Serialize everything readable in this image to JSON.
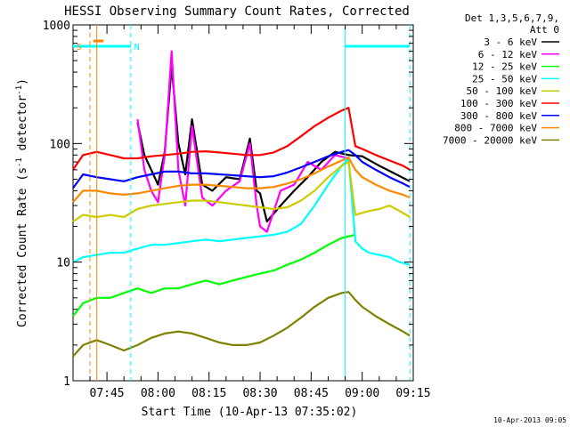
{
  "chart_data": {
    "type": "line",
    "title": "HESSI Observing Summary Count Rates, Corrected",
    "xlabel": "Start Time (10-Apr-13 07:35:02)",
    "ylabel_main": "Corrected Count Rate (s",
    "ylabel_sup1": "-1",
    "ylabel_mid": " detector",
    "ylabel_sup2": "-1",
    "ylabel_end": ")",
    "footer": "10-Apr-2013 09:05",
    "yscale": "log",
    "ylim": [
      1,
      1000
    ],
    "xlim": [
      "07:35:02",
      "09:15:00"
    ],
    "x_tick_labels": [
      "07:45",
      "08:00",
      "08:15",
      "08:30",
      "08:45",
      "09:00",
      "09:15"
    ],
    "y_tick_labels": [
      "1",
      "10",
      "100",
      "1000"
    ],
    "legend_header_1": "Det 1,3,5,6,7,9,",
    "legend_header_2": "Att 0",
    "legend_position": "right",
    "flags": {
      "saa_label": "S",
      "night_label": "N"
    },
    "series": [
      {
        "name": "3 - 6 keV",
        "color": "#000000",
        "x": [
          "07:35",
          "07:40",
          "07:41",
          "07:42",
          "07:44",
          "07:46",
          "07:50",
          "07:52",
          "07:54",
          "07:56",
          "07:58",
          "08:00",
          "08:02",
          "08:04",
          "08:06",
          "08:08",
          "08:10",
          "08:13",
          "08:16",
          "08:20",
          "08:24",
          "08:27",
          "08:29",
          "08:30",
          "08:32",
          "08:36",
          "08:40",
          "08:44",
          "08:48",
          "08:52",
          "08:56",
          "09:00",
          "09:05",
          "09:10",
          "09:14"
        ],
        "values": [
          null,
          null,
          null,
          null,
          null,
          null,
          null,
          null,
          150,
          80,
          60,
          45,
          85,
          450,
          100,
          55,
          160,
          45,
          40,
          52,
          50,
          110,
          40,
          38,
          22,
          30,
          40,
          52,
          70,
          85,
          80,
          78,
          65,
          55,
          48
        ]
      },
      {
        "name": "6 - 12 keV",
        "color": "#ff00ff",
        "x": [
          "07:54",
          "07:56",
          "07:58",
          "08:00",
          "08:02",
          "08:04",
          "08:06",
          "08:08",
          "08:10",
          "08:13",
          "08:16",
          "08:20",
          "08:24",
          "08:27",
          "08:29",
          "08:30",
          "08:32",
          "08:36",
          "08:40",
          "08:44",
          "08:48",
          "08:52",
          "08:56"
        ],
        "values": [
          160,
          60,
          40,
          32,
          80,
          600,
          60,
          30,
          140,
          35,
          30,
          40,
          48,
          100,
          30,
          20,
          18,
          40,
          45,
          70,
          60,
          80,
          75
        ]
      },
      {
        "name": "12 - 25 keV",
        "color": "#00ff00",
        "x": [
          "07:35",
          "07:38",
          "07:42",
          "07:46",
          "07:50",
          "07:54",
          "07:58",
          "08:02",
          "08:06",
          "08:10",
          "08:14",
          "08:18",
          "08:22",
          "08:26",
          "08:30",
          "08:34",
          "08:38",
          "08:42",
          "08:46",
          "08:50",
          "08:54",
          "08:58",
          "09:00",
          "09:04",
          "09:08",
          "09:12",
          "09:14"
        ],
        "values": [
          3.5,
          4.5,
          5,
          5,
          5.5,
          6,
          5.5,
          6,
          6,
          6.5,
          7,
          6.5,
          7,
          7.5,
          8,
          8.5,
          9.5,
          10.5,
          12,
          14,
          16,
          17,
          null,
          null,
          null,
          null,
          null
        ]
      },
      {
        "name": "25 - 50 keV",
        "color": "#00ffff",
        "x": [
          "07:35",
          "07:38",
          "07:42",
          "07:46",
          "07:50",
          "07:54",
          "07:58",
          "08:02",
          "08:06",
          "08:10",
          "08:14",
          "08:18",
          "08:22",
          "08:26",
          "08:30",
          "08:34",
          "08:38",
          "08:42",
          "08:46",
          "08:50",
          "08:54",
          "08:56",
          "08:58",
          "09:00",
          "09:02",
          "09:05",
          "09:08",
          "09:11",
          "09:14"
        ],
        "values": [
          10,
          11,
          11.5,
          12,
          12,
          13,
          14,
          14,
          14.5,
          15,
          15.5,
          15,
          15.5,
          16,
          16.5,
          17,
          18,
          21,
          30,
          45,
          65,
          75,
          15,
          13,
          12,
          11.5,
          11,
          10,
          9.5
        ]
      },
      {
        "name": "50 - 100 keV",
        "color": "#cccc00",
        "x": [
          "07:35",
          "07:38",
          "07:42",
          "07:46",
          "07:50",
          "07:54",
          "07:58",
          "08:02",
          "08:06",
          "08:10",
          "08:14",
          "08:18",
          "08:22",
          "08:26",
          "08:30",
          "08:34",
          "08:38",
          "08:42",
          "08:46",
          "08:50",
          "08:54",
          "08:56",
          "08:58",
          "09:00",
          "09:02",
          "09:05",
          "09:08",
          "09:11",
          "09:14"
        ],
        "values": [
          22,
          25,
          24,
          25,
          24,
          28,
          30,
          31,
          32,
          33,
          33,
          32,
          31,
          30,
          29,
          28,
          29,
          33,
          40,
          52,
          65,
          70,
          25,
          26,
          27,
          28,
          30,
          27,
          24
        ]
      },
      {
        "name": "100 - 300 keV",
        "color": "#ff0000",
        "x": [
          "07:35",
          "07:38",
          "07:42",
          "07:46",
          "07:50",
          "07:54",
          "07:58",
          "08:02",
          "08:06",
          "08:10",
          "08:14",
          "08:18",
          "08:22",
          "08:26",
          "08:30",
          "08:34",
          "08:38",
          "08:42",
          "08:46",
          "08:50",
          "08:54",
          "08:56",
          "08:58",
          "09:00",
          "09:04",
          "09:08",
          "09:12",
          "09:14"
        ],
        "values": [
          60,
          80,
          85,
          80,
          75,
          75,
          78,
          80,
          82,
          85,
          86,
          84,
          82,
          80,
          80,
          84,
          95,
          115,
          140,
          165,
          190,
          200,
          95,
          90,
          80,
          72,
          65,
          60
        ]
      },
      {
        "name": "300 - 800 keV",
        "color": "#0000ff",
        "x": [
          "07:35",
          "07:38",
          "07:42",
          "07:46",
          "07:50",
          "07:54",
          "07:58",
          "08:02",
          "08:06",
          "08:10",
          "08:14",
          "08:18",
          "08:22",
          "08:26",
          "08:30",
          "08:34",
          "08:38",
          "08:42",
          "08:46",
          "08:50",
          "08:54",
          "08:56",
          "08:58",
          "09:00",
          "09:04",
          "09:08",
          "09:12",
          "09:14"
        ],
        "values": [
          42,
          55,
          52,
          50,
          48,
          52,
          55,
          58,
          58,
          56,
          56,
          55,
          54,
          53,
          52,
          53,
          57,
          63,
          70,
          78,
          85,
          88,
          80,
          70,
          60,
          52,
          46,
          43
        ]
      },
      {
        "name": "800 - 7000 keV",
        "color": "#ff8800",
        "x": [
          "07:35",
          "07:38",
          "07:42",
          "07:46",
          "07:50",
          "07:54",
          "07:58",
          "08:02",
          "08:06",
          "08:10",
          "08:14",
          "08:18",
          "08:22",
          "08:26",
          "08:30",
          "08:34",
          "08:38",
          "08:42",
          "08:46",
          "08:50",
          "08:54",
          "08:56",
          "08:58",
          "09:00",
          "09:04",
          "09:08",
          "09:12",
          "09:14"
        ],
        "values": [
          32,
          40,
          40,
          38,
          37,
          38,
          40,
          42,
          44,
          45,
          45,
          44,
          43,
          42,
          42,
          43,
          46,
          50,
          56,
          64,
          72,
          76,
          60,
          52,
          45,
          40,
          37,
          35
        ]
      },
      {
        "name": "7000 - 20000 keV",
        "color": "#808000",
        "x": [
          "07:35",
          "07:38",
          "07:42",
          "07:46",
          "07:50",
          "07:54",
          "07:58",
          "08:02",
          "08:06",
          "08:10",
          "08:14",
          "08:18",
          "08:22",
          "08:26",
          "08:30",
          "08:34",
          "08:38",
          "08:42",
          "08:46",
          "08:50",
          "08:54",
          "08:56",
          "08:58",
          "09:00",
          "09:04",
          "09:08",
          "09:12",
          "09:14"
        ],
        "values": [
          1.6,
          2,
          2.2,
          2,
          1.8,
          2,
          2.3,
          2.5,
          2.6,
          2.5,
          2.3,
          2.1,
          2,
          2,
          2.1,
          2.4,
          2.8,
          3.4,
          4.2,
          5,
          5.5,
          5.6,
          4.8,
          4.2,
          3.5,
          3,
          2.6,
          2.4
        ]
      }
    ]
  }
}
